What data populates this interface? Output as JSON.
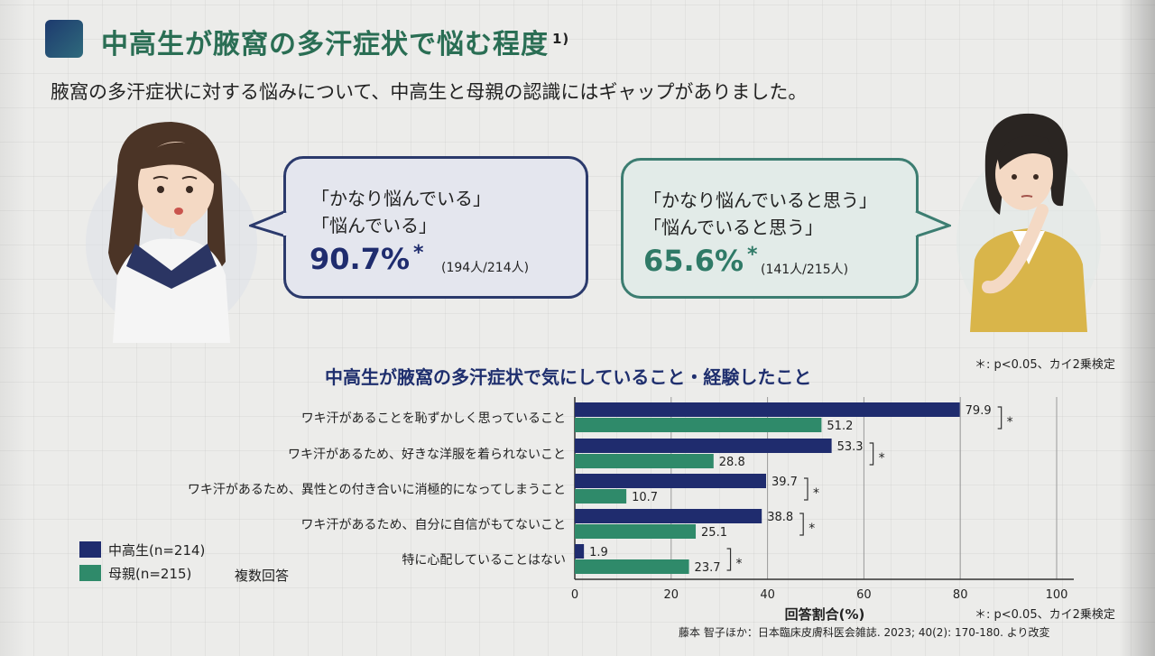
{
  "header": {
    "title": "中高生が腋窩の多汗症状で悩む程度",
    "title_ref": "1)",
    "subtitle": "腋窩の多汗症状に対する悩みについて、中高生と母親の認識にはギャップがありました。"
  },
  "student_bubble": {
    "line1": "「かなり悩んでいる」",
    "line2": "「悩んでいる」",
    "percent": "90.7%",
    "asterisk": "*",
    "count": "(194人/214人)"
  },
  "mother_bubble": {
    "line1": "「かなり悩んでいると思う」",
    "line2": "「悩んでいると思う」",
    "percent": "65.6%",
    "asterisk": "*",
    "count": "(141人/215人)"
  },
  "significance_note_top": "＊: p<0.05、カイ2乗検定",
  "significance_note_bottom": "＊: p<0.05、カイ2乗検定",
  "legend": {
    "students": "中高生(n=214)",
    "mothers": "母親(n=215)",
    "multi": "複数回答"
  },
  "colors": {
    "students": "#1f2c6e",
    "mothers": "#2f8a6a",
    "title": "#2a6e54"
  },
  "source": "藤本 智子ほか：日本臨床皮膚科医会雑誌. 2023; 40(2): 170-180. より改変",
  "chart_data": {
    "type": "bar",
    "orientation": "horizontal",
    "title": "中高生が腋窩の多汗症状で気にしていること・経験したこと",
    "categories": [
      "ワキ汗があることを恥ずかしく思っていること",
      "ワキ汗があるため、好きな洋服を着られないこと",
      "ワキ汗があるため、異性との付き合いに消極的になってしまうこと",
      "ワキ汗があるため、自分に自信がもてないこと",
      "特に心配していることはない"
    ],
    "series": [
      {
        "name": "中高生(n=214)",
        "values": [
          79.9,
          53.3,
          39.7,
          38.8,
          1.9
        ]
      },
      {
        "name": "母親(n=215)",
        "values": [
          51.2,
          28.8,
          10.7,
          25.1,
          23.7
        ]
      }
    ],
    "value_labels": [
      [
        "79.9",
        "53.3",
        "39.7",
        "38.8",
        "1.9"
      ],
      [
        "51.2",
        "28.8",
        "10.7",
        "25.1",
        "23.7"
      ]
    ],
    "significance_mark": "*",
    "xlabel": "回答割合(%)",
    "xlim": [
      0,
      100
    ],
    "xticks": [
      0,
      20,
      40,
      60,
      80,
      100
    ],
    "xtick_labels": [
      "0",
      "20",
      "40",
      "60",
      "80",
      "100"
    ],
    "grid": true
  }
}
